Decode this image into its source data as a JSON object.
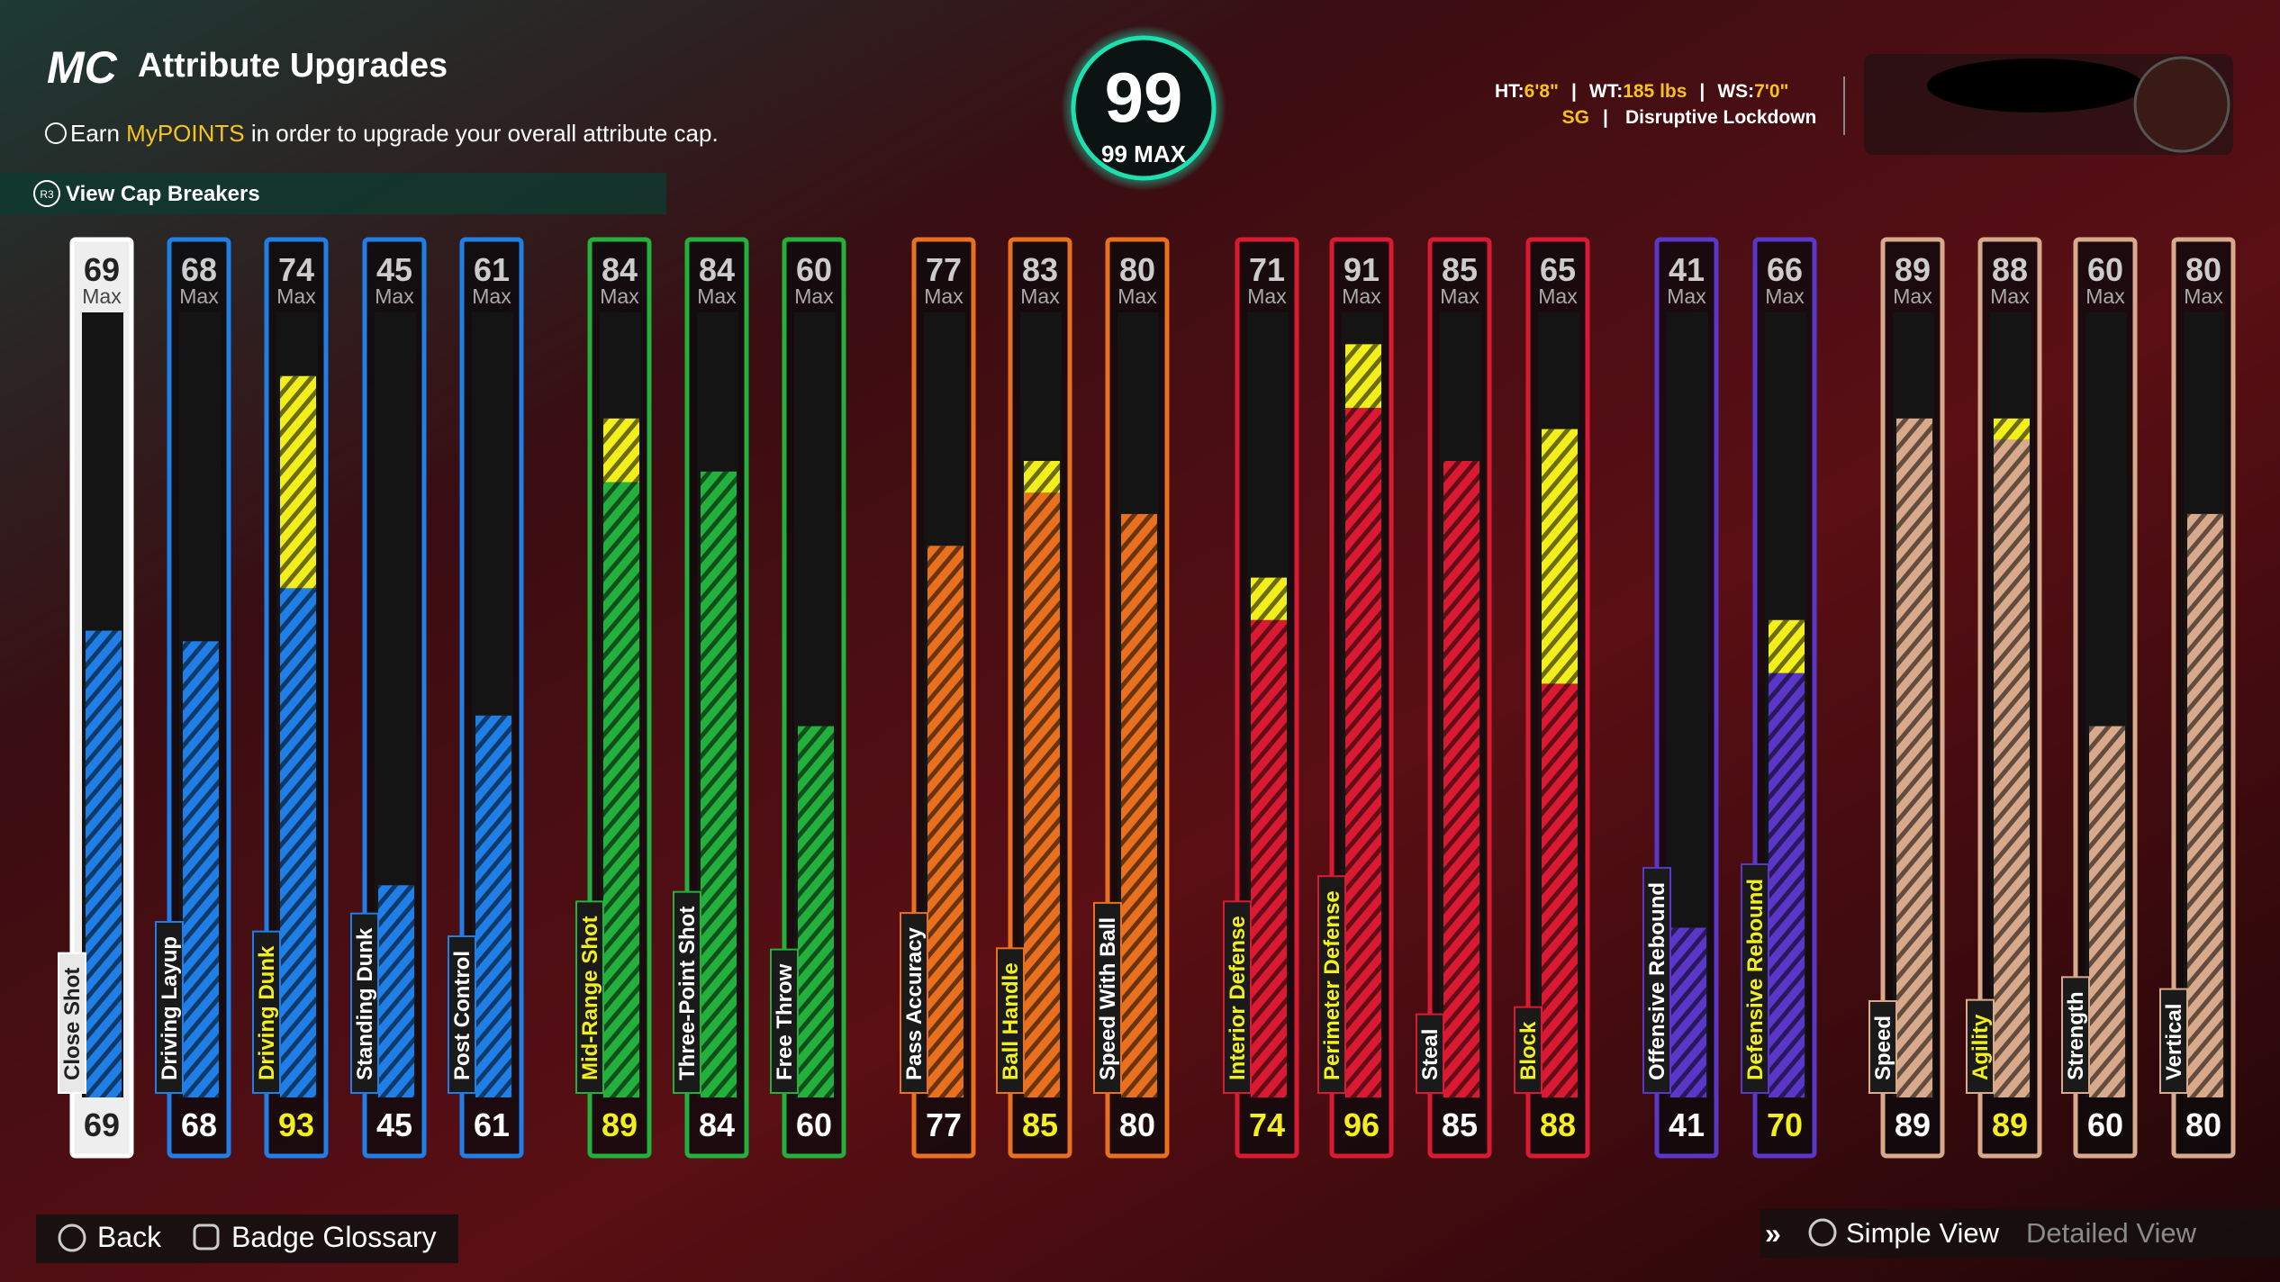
{
  "header": {
    "logo": "MC",
    "title": "Attribute Upgrades",
    "subtitle": {
      "before": "Earn",
      "highlight": "MyPOINTS",
      "after": "in order to upgrade your overall attribute cap."
    },
    "button_hint": "R3",
    "cap_breakers": "View Cap Breakers"
  },
  "overall": {
    "value": "99",
    "max": "99 MAX"
  },
  "player": {
    "stats": [
      {
        "label": "HT:",
        "value": "6'8\""
      },
      {
        "label": "WT:",
        "value": "185 lbs"
      },
      {
        "label": "WS:",
        "value": "7'0\""
      }
    ],
    "position": "SG",
    "archetype": "Disruptive Lockdown"
  },
  "chart_data": {
    "type": "bar",
    "ylim": [
      25,
      99
    ],
    "max_label": "Max",
    "selected": "Close Shot",
    "boost_color": "#f2ef1c",
    "groups": [
      {
        "color": "#1f7fe6",
        "attributes": [
          {
            "name": "Close Shot",
            "max": 69,
            "base": 69,
            "value": 69
          },
          {
            "name": "Driving Layup",
            "max": 68,
            "base": 68,
            "value": 68
          },
          {
            "name": "Driving Dunk",
            "max": 74,
            "base": 73,
            "value": 93
          },
          {
            "name": "Standing Dunk",
            "max": 45,
            "base": 45,
            "value": 45
          },
          {
            "name": "Post Control",
            "max": 61,
            "base": 61,
            "value": 61
          }
        ]
      },
      {
        "color": "#23b03c",
        "attributes": [
          {
            "name": "Mid-Range Shot",
            "max": 84,
            "base": 83,
            "value": 89
          },
          {
            "name": "Three-Point Shot",
            "max": 84,
            "base": 84,
            "value": 84
          },
          {
            "name": "Free Throw",
            "max": 60,
            "base": 60,
            "value": 60
          }
        ]
      },
      {
        "color": "#e8701e",
        "attributes": [
          {
            "name": "Pass Accuracy",
            "max": 77,
            "base": 77,
            "value": 77
          },
          {
            "name": "Ball Handle",
            "max": 83,
            "base": 82,
            "value": 85
          },
          {
            "name": "Speed With Ball",
            "max": 80,
            "base": 80,
            "value": 80
          }
        ]
      },
      {
        "color": "#d91a32",
        "attributes": [
          {
            "name": "Interior Defense",
            "max": 71,
            "base": 70,
            "value": 74
          },
          {
            "name": "Perimeter Defense",
            "max": 91,
            "base": 90,
            "value": 96
          },
          {
            "name": "Steal",
            "max": 85,
            "base": 85,
            "value": 85
          },
          {
            "name": "Block",
            "max": 65,
            "base": 64,
            "value": 88
          }
        ]
      },
      {
        "color": "#5b37c9",
        "attributes": [
          {
            "name": "Offensive Rebound",
            "max": 41,
            "base": 41,
            "value": 41
          },
          {
            "name": "Defensive Rebound",
            "max": 66,
            "base": 65,
            "value": 70
          }
        ]
      },
      {
        "color": "#d8a98a",
        "attributes": [
          {
            "name": "Speed",
            "max": 89,
            "base": 89,
            "value": 89
          },
          {
            "name": "Agility",
            "max": 88,
            "base": 87,
            "value": 89
          },
          {
            "name": "Strength",
            "max": 60,
            "base": 60,
            "value": 60
          },
          {
            "name": "Vertical",
            "max": 80,
            "base": 80,
            "value": 80
          }
        ]
      }
    ]
  },
  "footer": {
    "back": "Back",
    "glossary": "Badge Glossary",
    "simple": "Simple View",
    "detailed": "Detailed View"
  }
}
